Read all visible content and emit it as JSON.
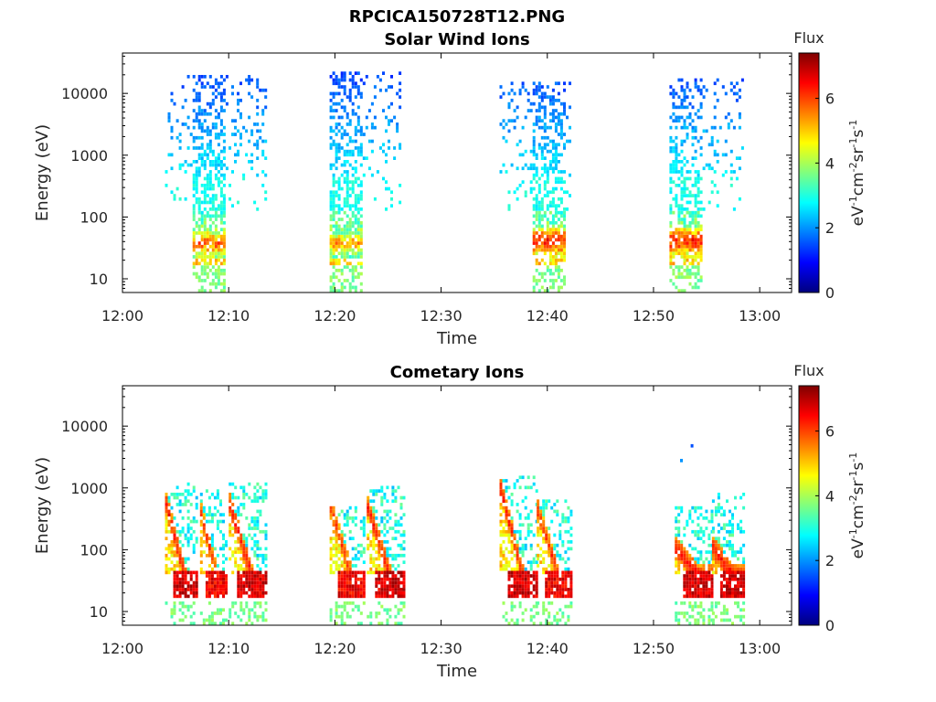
{
  "figure_title": "RPCICA150728T12.PNG",
  "colormap": [
    "#00007f",
    "#0000ff",
    "#007fff",
    "#00ffff",
    "#7fff7f",
    "#ffff00",
    "#ff7f00",
    "#ff0000",
    "#7f0000"
  ],
  "chart_data": [
    {
      "type": "heatmap",
      "title": "Solar Wind Ions",
      "xlabel": "Time",
      "ylabel": "Energy (eV)",
      "x_unit": "time",
      "xlim": [
        "12:00",
        "13:03"
      ],
      "x_ticks": [
        "12:00",
        "12:10",
        "12:20",
        "12:30",
        "12:40",
        "12:50",
        "13:00"
      ],
      "y_scale": "log",
      "ylim": [
        6,
        45000
      ],
      "y_ticks": [
        10,
        100,
        1000,
        10000
      ],
      "y_tick_labels": [
        "10",
        "100",
        "1000",
        "10000"
      ],
      "colorbar": {
        "title": "Flux",
        "label": "eV-1cm-2sr-1s-1",
        "label_parts": [
          "eV",
          "-1",
          "cm",
          "-2",
          "sr",
          "-1",
          "s",
          "-1"
        ],
        "range": [
          0,
          7.4
        ],
        "ticks": [
          0,
          2,
          4,
          6
        ],
        "tick_labels": [
          "0",
          "2",
          "4",
          "6"
        ]
      },
      "bursts": [
        {
          "t_start": "12:04",
          "t_end": "12:13.5",
          "core_start": "12:06.5",
          "core_end": "12:09.5",
          "e_max": 19000,
          "peak_energy": 35,
          "peak_flux": 6.5,
          "sparse": 0.62
        },
        {
          "t_start": "12:19.5",
          "t_end": "12:26",
          "core_start": "12:19.5",
          "core_end": "12:22.5",
          "e_max": 22000,
          "peak_energy": 35,
          "peak_flux": 6.0,
          "sparse": 0.6
        },
        {
          "t_start": "12:35.5",
          "t_end": "12:42",
          "core_start": "12:38.5",
          "core_end": "12:41.5",
          "e_max": 14000,
          "peak_energy": 38,
          "peak_flux": 7.0,
          "sparse": 0.62
        },
        {
          "t_start": "12:51.5",
          "t_end": "12:58.5",
          "core_start": "12:51.5",
          "core_end": "12:54.5",
          "e_max": 16000,
          "peak_energy": 38,
          "peak_flux": 7.0,
          "sparse": 0.62
        }
      ]
    },
    {
      "type": "heatmap",
      "title": "Cometary Ions",
      "xlabel": "Time",
      "ylabel": "Energy (eV)",
      "x_unit": "time",
      "xlim": [
        "12:00",
        "13:03"
      ],
      "x_ticks": [
        "12:00",
        "12:10",
        "12:20",
        "12:30",
        "12:40",
        "12:50",
        "13:00"
      ],
      "y_scale": "log",
      "ylim": [
        6,
        45000
      ],
      "y_ticks": [
        10,
        100,
        1000,
        10000
      ],
      "y_tick_labels": [
        "10",
        "100",
        "1000",
        "10000"
      ],
      "colorbar": {
        "title": "Flux",
        "label": "eV-1cm-2sr-1s-1",
        "label_parts": [
          "eV",
          "-1",
          "cm",
          "-2",
          "sr",
          "-1",
          "s",
          "-1"
        ],
        "range": [
          0,
          7.4
        ],
        "ticks": [
          0,
          2,
          4,
          6
        ],
        "tick_labels": [
          "0",
          "2",
          "4",
          "6"
        ]
      },
      "pulses": [
        {
          "t_start": "12:04",
          "t_end": "12:07",
          "e_top": 500,
          "e_max": 1200,
          "peak_energy": 30,
          "peak_flux": 7.2
        },
        {
          "t_start": "12:07.3",
          "t_end": "12:09.8",
          "e_top": 350,
          "e_max": 900,
          "peak_energy": 30,
          "peak_flux": 7.0
        },
        {
          "t_start": "12:10",
          "t_end": "12:13.5",
          "e_top": 500,
          "e_max": 1200,
          "peak_energy": 30,
          "peak_flux": 7.2
        },
        {
          "t_start": "12:19.5",
          "t_end": "12:22.8",
          "e_top": 450,
          "e_max": 500,
          "peak_energy": 30,
          "peak_flux": 7.0
        },
        {
          "t_start": "12:23",
          "t_end": "12:26.5",
          "e_top": 450,
          "e_max": 1000,
          "peak_energy": 30,
          "peak_flux": 7.2
        },
        {
          "t_start": "12:35.5",
          "t_end": "12:39",
          "e_top": 900,
          "e_max": 1400,
          "peak_energy": 30,
          "peak_flux": 7.2
        },
        {
          "t_start": "12:39",
          "t_end": "12:42.3",
          "e_top": 400,
          "e_max": 600,
          "peak_energy": 30,
          "peak_flux": 7.0
        },
        {
          "t_start": "12:52",
          "t_end": "12:55.5",
          "e_top": 100,
          "e_max": 500,
          "peak_energy": 35,
          "peak_flux": 7.2
        },
        {
          "t_start": "12:55.5",
          "t_end": "12:58.5",
          "e_top": 100,
          "e_max": 800,
          "peak_energy": 35,
          "peak_flux": 7.2
        }
      ],
      "isolated_points": [
        {
          "t": "12:53.5",
          "energy": 4500,
          "flux": 1.5
        },
        {
          "t": "12:52.5",
          "energy": 2600,
          "flux": 2.0
        }
      ]
    }
  ]
}
